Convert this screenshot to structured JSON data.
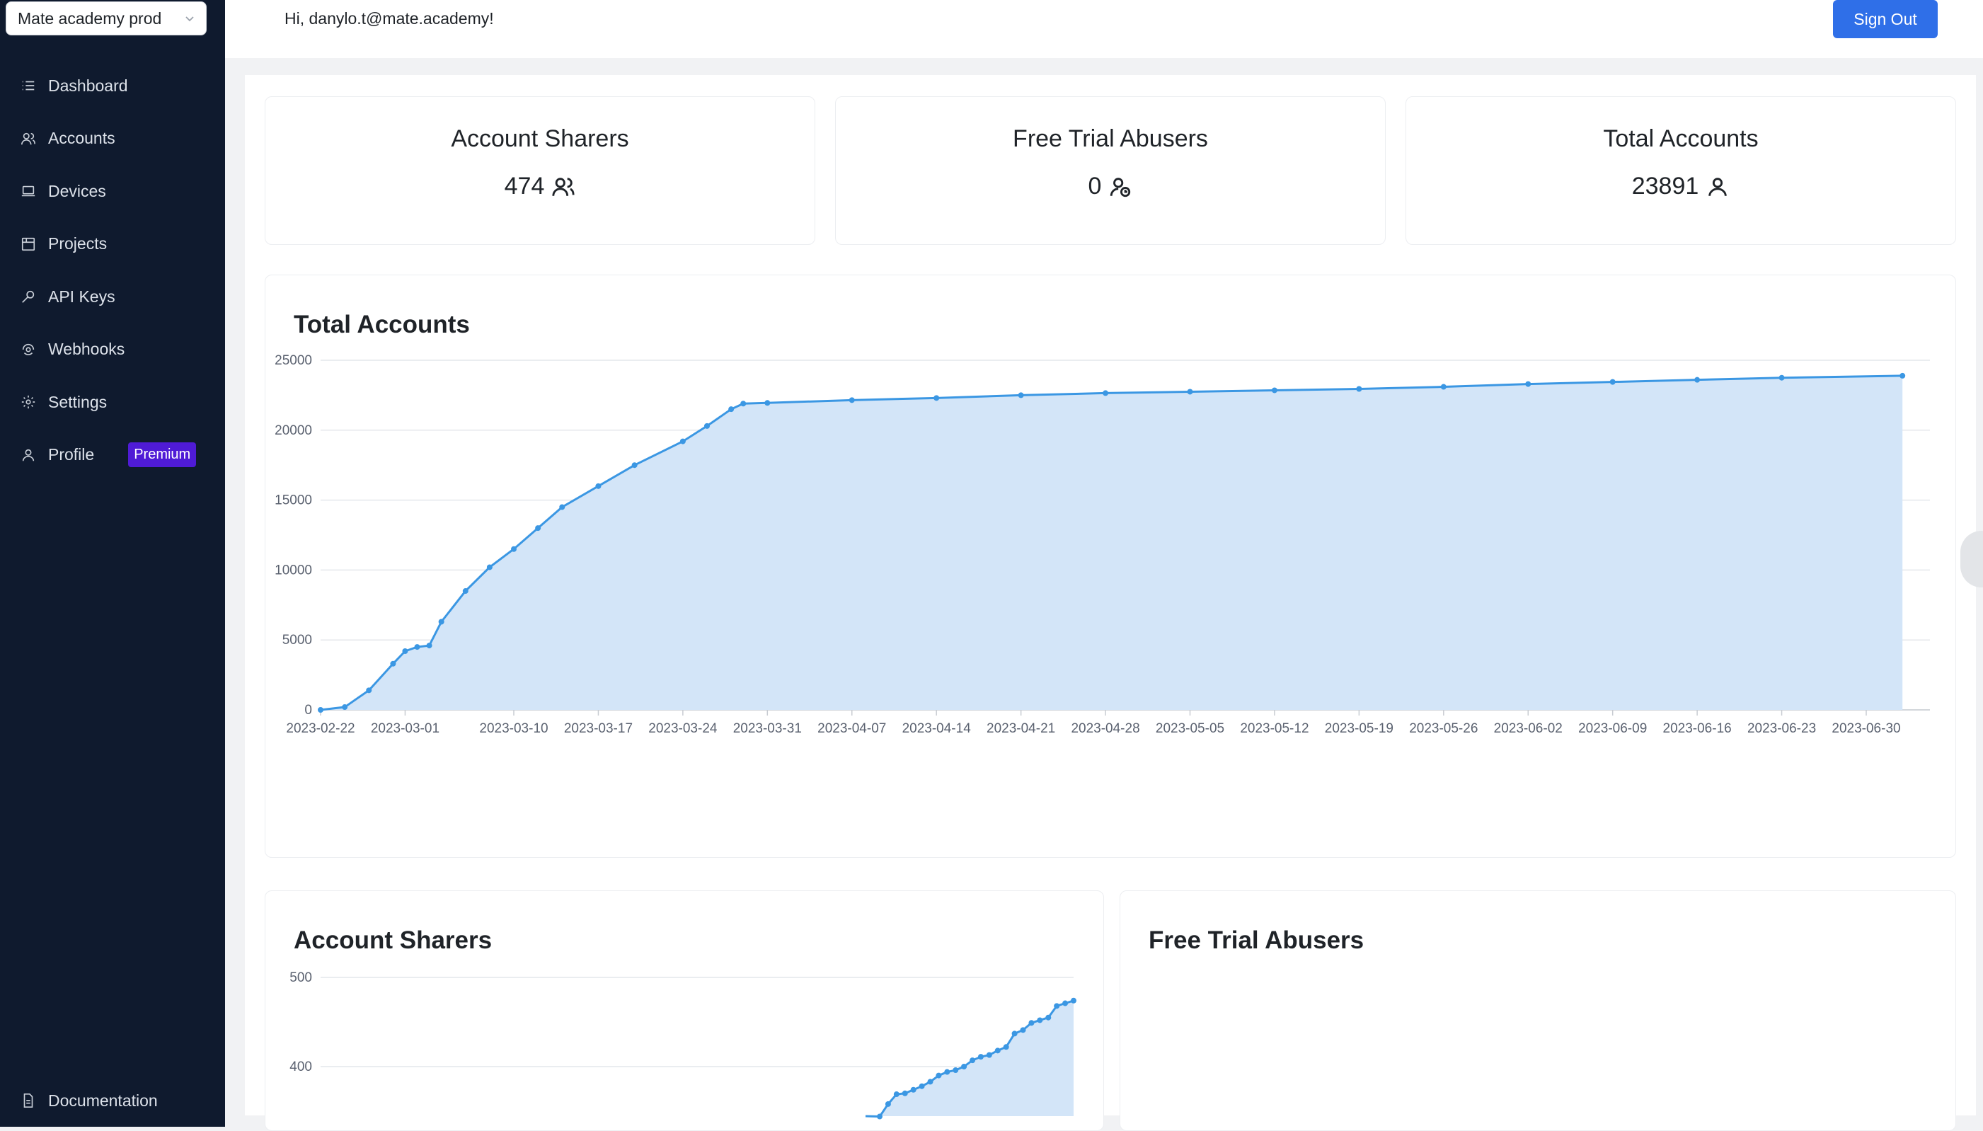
{
  "project_select": {
    "label": "Mate academy prod"
  },
  "sidebar": {
    "items": [
      {
        "label": "Dashboard",
        "icon": "list-icon"
      },
      {
        "label": "Accounts",
        "icon": "users-icon"
      },
      {
        "label": "Devices",
        "icon": "laptop-icon"
      },
      {
        "label": "Projects",
        "icon": "folder-icon"
      },
      {
        "label": "API Keys",
        "icon": "key-icon"
      },
      {
        "label": "Webhooks",
        "icon": "webhook-icon"
      },
      {
        "label": "Settings",
        "icon": "gear-icon"
      },
      {
        "label": "Profile",
        "icon": "user-icon",
        "badge": "Premium"
      }
    ],
    "documentation": "Documentation"
  },
  "header": {
    "greeting": "Hi, danylo.t@mate.academy!",
    "signout": "Sign Out"
  },
  "stats": [
    {
      "title": "Account Sharers",
      "value": "474",
      "icon": "users-icon"
    },
    {
      "title": "Free Trial Abusers",
      "value": "0",
      "icon": "user-clock-icon"
    },
    {
      "title": "Total Accounts",
      "value": "23891",
      "icon": "user-icon"
    }
  ],
  "colors": {
    "sidebar_bg": "#0f1a2e",
    "accent": "#2f6fe8",
    "premium": "#4f1bd6",
    "series_line": "#3b97e3",
    "series_fill": "#d3e5f8"
  },
  "chart_data": [
    {
      "type": "area",
      "title": "Total Accounts",
      "xlabel": "",
      "ylabel": "",
      "ylim": [
        0,
        25000
      ],
      "yticks": [
        0,
        5000,
        10000,
        15000,
        20000,
        25000
      ],
      "xticks": [
        "2023-02-22",
        "2023-03-01",
        "2023-03-10",
        "2023-03-17",
        "2023-03-24",
        "2023-03-31",
        "2023-04-07",
        "2023-04-14",
        "2023-04-21",
        "2023-04-28",
        "2023-05-05",
        "2023-05-12",
        "2023-05-19",
        "2023-05-26",
        "2023-06-02",
        "2023-06-09",
        "2023-06-16",
        "2023-06-23",
        "2023-06-30"
      ],
      "grid": true,
      "series": [
        {
          "values": [
            {
              "x": "2023-02-22",
              "y": 0
            },
            {
              "x": "2023-02-24",
              "y": 200
            },
            {
              "x": "2023-02-26",
              "y": 1400
            },
            {
              "x": "2023-02-28",
              "y": 3300
            },
            {
              "x": "2023-03-01",
              "y": 4200
            },
            {
              "x": "2023-03-02",
              "y": 4500
            },
            {
              "x": "2023-03-03",
              "y": 4600
            },
            {
              "x": "2023-03-04",
              "y": 6300
            },
            {
              "x": "2023-03-06",
              "y": 8500
            },
            {
              "x": "2023-03-08",
              "y": 10200
            },
            {
              "x": "2023-03-10",
              "y": 11500
            },
            {
              "x": "2023-03-12",
              "y": 13000
            },
            {
              "x": "2023-03-14",
              "y": 14500
            },
            {
              "x": "2023-03-17",
              "y": 16000
            },
            {
              "x": "2023-03-20",
              "y": 17500
            },
            {
              "x": "2023-03-24",
              "y": 19200
            },
            {
              "x": "2023-03-26",
              "y": 20300
            },
            {
              "x": "2023-03-28",
              "y": 21500
            },
            {
              "x": "2023-03-29",
              "y": 21900
            },
            {
              "x": "2023-03-31",
              "y": 21950
            },
            {
              "x": "2023-04-07",
              "y": 22150
            },
            {
              "x": "2023-04-14",
              "y": 22300
            },
            {
              "x": "2023-04-21",
              "y": 22500
            },
            {
              "x": "2023-04-28",
              "y": 22650
            },
            {
              "x": "2023-05-05",
              "y": 22750
            },
            {
              "x": "2023-05-12",
              "y": 22850
            },
            {
              "x": "2023-05-19",
              "y": 22950
            },
            {
              "x": "2023-05-26",
              "y": 23100
            },
            {
              "x": "2023-06-02",
              "y": 23300
            },
            {
              "x": "2023-06-09",
              "y": 23450
            },
            {
              "x": "2023-06-16",
              "y": 23600
            },
            {
              "x": "2023-06-23",
              "y": 23750
            },
            {
              "x": "2023-07-03",
              "y": 23891
            }
          ]
        }
      ]
    },
    {
      "type": "area",
      "title": "Account Sharers",
      "xlabel": "",
      "ylabel": "",
      "yticks": [
        400,
        500
      ],
      "grid": true,
      "series": [
        {
          "values": [
            {
              "x": 1,
              "y": 344
            },
            {
              "x": 2,
              "y": 358
            },
            {
              "x": 3,
              "y": 369
            },
            {
              "x": 4,
              "y": 370
            },
            {
              "x": 5,
              "y": 374
            },
            {
              "x": 6,
              "y": 378
            },
            {
              "x": 7,
              "y": 383
            },
            {
              "x": 8,
              "y": 390
            },
            {
              "x": 9,
              "y": 394
            },
            {
              "x": 10,
              "y": 396
            },
            {
              "x": 11,
              "y": 400
            },
            {
              "x": 12,
              "y": 407
            },
            {
              "x": 13,
              "y": 411
            },
            {
              "x": 14,
              "y": 413
            },
            {
              "x": 15,
              "y": 418
            },
            {
              "x": 16,
              "y": 422
            },
            {
              "x": 17,
              "y": 437
            },
            {
              "x": 18,
              "y": 441
            },
            {
              "x": 19,
              "y": 449
            },
            {
              "x": 20,
              "y": 452
            },
            {
              "x": 21,
              "y": 455
            },
            {
              "x": 22,
              "y": 468
            },
            {
              "x": 23,
              "y": 471
            },
            {
              "x": 24,
              "y": 474
            }
          ]
        }
      ]
    },
    {
      "type": "area",
      "title": "Free Trial Abusers",
      "series": []
    }
  ]
}
